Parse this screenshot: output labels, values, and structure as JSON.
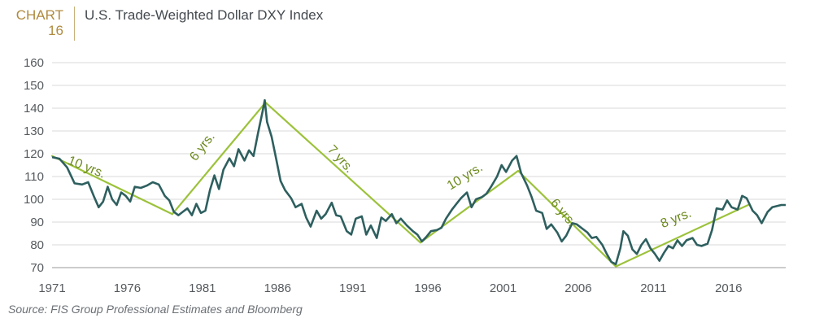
{
  "header": {
    "chart_word": "CHART",
    "chart_number": "16",
    "title": "U.S. Trade-Weighted Dollar DXY Index"
  },
  "source": "Source: FIS Group Professional Estimates and Bloomberg",
  "colors": {
    "series": "#2e5f5f",
    "trend": "#9cc23a",
    "annotation": "#6d8a1e",
    "grid": "#d9d9d9",
    "axis_text": "#555a5e",
    "accent": "#b08a3e"
  },
  "chart_data": {
    "type": "line",
    "title": "U.S. Trade-Weighted Dollar DXY Index",
    "xlabel": "",
    "ylabel": "",
    "xlim": [
      1971,
      2019.8
    ],
    "ylim": [
      70,
      160
    ],
    "yticks": [
      70,
      80,
      90,
      100,
      110,
      120,
      130,
      140,
      150,
      160
    ],
    "xticks": [
      1971,
      1976,
      1981,
      1986,
      1991,
      1996,
      2001,
      2006,
      2011,
      2016
    ],
    "grid": "horizontal",
    "series": [
      {
        "values": [
          [
            1971.0,
            118.5
          ],
          [
            1971.5,
            117.8
          ],
          [
            1972.0,
            114.0
          ],
          [
            1972.5,
            107.0
          ],
          [
            1973.0,
            106.5
          ],
          [
            1973.4,
            107.5
          ],
          [
            1973.8,
            101.0
          ],
          [
            1974.1,
            96.5
          ],
          [
            1974.4,
            99.0
          ],
          [
            1974.7,
            105.5
          ],
          [
            1975.0,
            100.0
          ],
          [
            1975.3,
            97.5
          ],
          [
            1975.6,
            103.0
          ],
          [
            1975.9,
            101.5
          ],
          [
            1976.2,
            99.0
          ],
          [
            1976.5,
            105.5
          ],
          [
            1976.9,
            105.0
          ],
          [
            1977.3,
            106.0
          ],
          [
            1977.7,
            107.5
          ],
          [
            1978.1,
            106.5
          ],
          [
            1978.5,
            101.5
          ],
          [
            1978.8,
            99.5
          ],
          [
            1979.1,
            94.5
          ],
          [
            1979.4,
            93.0
          ],
          [
            1979.7,
            94.5
          ],
          [
            1980.0,
            96.0
          ],
          [
            1980.3,
            93.0
          ],
          [
            1980.6,
            98.0
          ],
          [
            1980.9,
            94.0
          ],
          [
            1981.2,
            95.0
          ],
          [
            1981.5,
            104.0
          ],
          [
            1981.8,
            110.5
          ],
          [
            1982.1,
            104.5
          ],
          [
            1982.4,
            113.0
          ],
          [
            1982.8,
            118.0
          ],
          [
            1983.1,
            114.5
          ],
          [
            1983.4,
            122.0
          ],
          [
            1983.8,
            117.0
          ],
          [
            1984.1,
            121.5
          ],
          [
            1984.4,
            119.0
          ],
          [
            1984.7,
            129.0
          ],
          [
            1985.0,
            138.5
          ],
          [
            1985.15,
            143.5
          ],
          [
            1985.3,
            134.0
          ],
          [
            1985.6,
            127.5
          ],
          [
            1985.9,
            118.0
          ],
          [
            1986.2,
            108.0
          ],
          [
            1986.5,
            104.0
          ],
          [
            1986.9,
            100.5
          ],
          [
            1987.2,
            96.5
          ],
          [
            1987.6,
            98.0
          ],
          [
            1987.9,
            92.0
          ],
          [
            1988.2,
            88.0
          ],
          [
            1988.6,
            95.0
          ],
          [
            1988.9,
            91.5
          ],
          [
            1989.2,
            93.5
          ],
          [
            1989.6,
            98.5
          ],
          [
            1989.9,
            93.0
          ],
          [
            1990.2,
            92.5
          ],
          [
            1990.6,
            86.0
          ],
          [
            1990.9,
            84.5
          ],
          [
            1991.2,
            91.5
          ],
          [
            1991.6,
            92.5
          ],
          [
            1991.9,
            84.5
          ],
          [
            1992.2,
            88.5
          ],
          [
            1992.6,
            83.0
          ],
          [
            1992.9,
            92.0
          ],
          [
            1993.2,
            90.5
          ],
          [
            1993.6,
            93.5
          ],
          [
            1993.9,
            89.5
          ],
          [
            1994.2,
            91.5
          ],
          [
            1994.6,
            88.5
          ],
          [
            1995.0,
            86.0
          ],
          [
            1995.3,
            84.5
          ],
          [
            1995.6,
            81.5
          ],
          [
            1995.9,
            83.5
          ],
          [
            1996.2,
            86.0
          ],
          [
            1996.6,
            86.5
          ],
          [
            1996.9,
            87.5
          ],
          [
            1997.2,
            91.5
          ],
          [
            1997.6,
            95.5
          ],
          [
            1997.9,
            98.0
          ],
          [
            1998.2,
            100.5
          ],
          [
            1998.6,
            103.0
          ],
          [
            1998.9,
            96.5
          ],
          [
            1999.2,
            100.0
          ],
          [
            1999.6,
            101.0
          ],
          [
            1999.9,
            102.5
          ],
          [
            2000.2,
            105.5
          ],
          [
            2000.6,
            110.0
          ],
          [
            2000.9,
            115.0
          ],
          [
            2001.2,
            112.0
          ],
          [
            2001.6,
            117.0
          ],
          [
            2001.9,
            119.0
          ],
          [
            2002.2,
            111.5
          ],
          [
            2002.6,
            106.0
          ],
          [
            2002.9,
            101.0
          ],
          [
            2003.2,
            95.0
          ],
          [
            2003.6,
            94.0
          ],
          [
            2003.9,
            87.0
          ],
          [
            2004.2,
            89.0
          ],
          [
            2004.6,
            85.5
          ],
          [
            2004.9,
            81.5
          ],
          [
            2005.2,
            84.0
          ],
          [
            2005.6,
            89.5
          ],
          [
            2005.9,
            89.0
          ],
          [
            2006.2,
            87.5
          ],
          [
            2006.6,
            85.5
          ],
          [
            2006.9,
            83.0
          ],
          [
            2007.2,
            83.5
          ],
          [
            2007.6,
            80.0
          ],
          [
            2007.9,
            76.0
          ],
          [
            2008.2,
            72.5
          ],
          [
            2008.5,
            71.5
          ],
          [
            2008.8,
            78.5
          ],
          [
            2009.0,
            86.0
          ],
          [
            2009.3,
            84.0
          ],
          [
            2009.6,
            78.0
          ],
          [
            2009.9,
            76.0
          ],
          [
            2010.2,
            80.0
          ],
          [
            2010.5,
            82.5
          ],
          [
            2010.8,
            78.5
          ],
          [
            2011.1,
            76.0
          ],
          [
            2011.4,
            73.0
          ],
          [
            2011.7,
            76.5
          ],
          [
            2012.0,
            79.5
          ],
          [
            2012.3,
            78.5
          ],
          [
            2012.6,
            82.0
          ],
          [
            2012.9,
            79.5
          ],
          [
            2013.2,
            82.0
          ],
          [
            2013.6,
            83.0
          ],
          [
            2013.9,
            80.0
          ],
          [
            2014.2,
            79.5
          ],
          [
            2014.6,
            80.5
          ],
          [
            2014.9,
            86.5
          ],
          [
            2015.2,
            96.0
          ],
          [
            2015.6,
            95.5
          ],
          [
            2015.9,
            99.5
          ],
          [
            2016.2,
            96.5
          ],
          [
            2016.6,
            95.5
          ],
          [
            2016.9,
            101.5
          ],
          [
            2017.2,
            100.5
          ],
          [
            2017.6,
            95.0
          ],
          [
            2017.9,
            93.0
          ],
          [
            2018.2,
            89.5
          ],
          [
            2018.6,
            94.5
          ],
          [
            2018.9,
            96.5
          ],
          [
            2019.2,
            97.0
          ],
          [
            2019.5,
            97.5
          ],
          [
            2019.8,
            97.5
          ]
        ]
      }
    ],
    "trend_lines": [
      {
        "from": [
          1971.0,
          119.0
        ],
        "to": [
          1979.0,
          93.5
        ]
      },
      {
        "from": [
          1979.0,
          93.5
        ],
        "to": [
          1985.2,
          142.5
        ]
      },
      {
        "from": [
          1985.2,
          142.5
        ],
        "to": [
          1995.5,
          81.0
        ]
      },
      {
        "from": [
          1995.5,
          81.0
        ],
        "to": [
          2002.0,
          112.5
        ]
      },
      {
        "from": [
          2002.0,
          112.5
        ],
        "to": [
          2008.5,
          70.5
        ]
      },
      {
        "from": [
          2008.5,
          70.5
        ],
        "to": [
          2017.3,
          97.5
        ]
      }
    ],
    "annotations": [
      {
        "text": "10 yrs.",
        "x": 1973.2,
        "y": 112.5,
        "rotate": 22
      },
      {
        "text": "6 yrs.",
        "x": 1981.2,
        "y": 122.0,
        "rotate": -52
      },
      {
        "text": "7 yrs.",
        "x": 1990.0,
        "y": 116.5,
        "rotate": 48
      },
      {
        "text": "10 yrs.",
        "x": 1998.6,
        "y": 108.5,
        "rotate": -32
      },
      {
        "text": "6 yrs.",
        "x": 2004.8,
        "y": 93.0,
        "rotate": 50
      },
      {
        "text": "8 yrs.",
        "x": 2012.6,
        "y": 90.0,
        "rotate": -22
      }
    ]
  }
}
